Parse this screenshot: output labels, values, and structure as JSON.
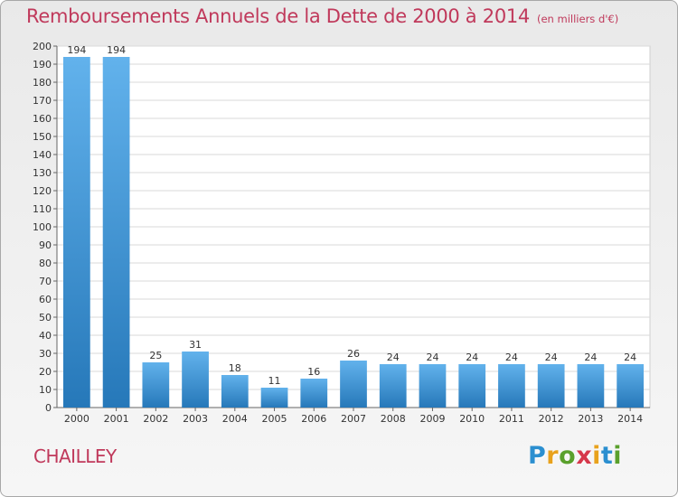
{
  "header": {
    "title": "Remboursements Annuels de la Dette de 2000 à 2014",
    "unit": "(en milliers d'€)"
  },
  "footer": {
    "commune": "CHAILLEY",
    "logo_letters": [
      "P",
      "r",
      "o",
      "x",
      "i",
      "t",
      "i"
    ],
    "logo_colors": [
      "#2b8fd0",
      "#e8a21d",
      "#5aa02c",
      "#d6384b",
      "#e8a21d",
      "#2b8fd0",
      "#5aa02c"
    ]
  },
  "colors": {
    "title": "#c0395b",
    "bar_top": "#62b2ec",
    "bar_bottom": "#2678b9",
    "grid": "#d9d9d9",
    "axis": "#666666"
  },
  "chart_data": {
    "type": "bar",
    "categories": [
      "2000",
      "2001",
      "2002",
      "2003",
      "2004",
      "2005",
      "2006",
      "2007",
      "2008",
      "2009",
      "2010",
      "2011",
      "2012",
      "2013",
      "2014"
    ],
    "values": [
      194,
      194,
      25,
      31,
      18,
      11,
      16,
      26,
      24,
      24,
      24,
      24,
      24,
      24,
      24
    ],
    "y_ticks": [
      0,
      10,
      20,
      30,
      40,
      50,
      60,
      70,
      80,
      90,
      100,
      110,
      120,
      130,
      140,
      150,
      160,
      170,
      180,
      190,
      200
    ],
    "ylim": [
      0,
      200
    ],
    "grid": true,
    "legend": "none"
  }
}
